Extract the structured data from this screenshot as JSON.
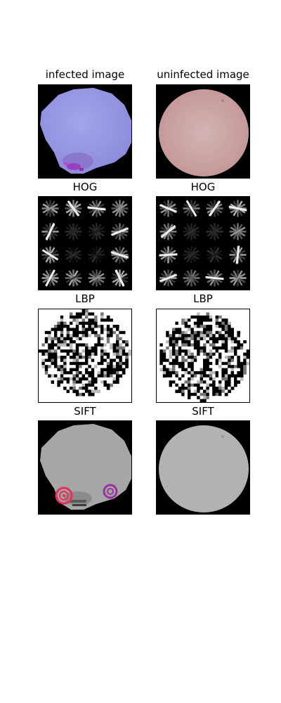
{
  "figure": {
    "columns": [
      {
        "title": "infected image",
        "panels": [
          {
            "label": "",
            "kind": "rgb-cell",
            "colors": {
              "cell": "#9999e0",
              "stain": "#9b3fc0"
            }
          },
          {
            "label": "HOG",
            "kind": "hog"
          },
          {
            "label": "LBP",
            "kind": "lbp"
          },
          {
            "label": "SIFT",
            "kind": "sift",
            "colors": {
              "cell": "#a6a6a6",
              "keypoint_1": "#e8305a",
              "keypoint_2": "#9a30a0"
            }
          }
        ]
      },
      {
        "title": "uninfected image",
        "panels": [
          {
            "label": "",
            "kind": "rgb-cell",
            "colors": {
              "cell": "#c8a0a0"
            }
          },
          {
            "label": "HOG",
            "kind": "hog"
          },
          {
            "label": "LBP",
            "kind": "lbp"
          },
          {
            "label": "SIFT",
            "kind": "sift",
            "colors": {
              "cell": "#b2b2b2"
            }
          }
        ]
      }
    ]
  }
}
